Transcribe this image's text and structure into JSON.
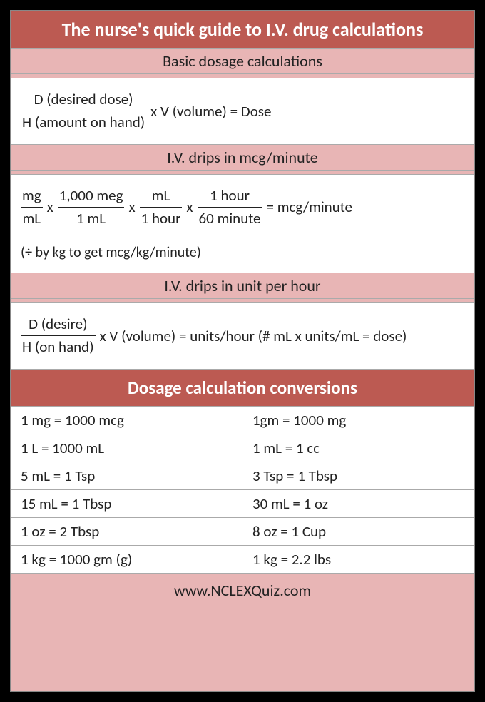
{
  "title": "The nurse's quick guide to I.V. drug calculations",
  "sections": {
    "basic": {
      "heading": "Basic dosage calculations",
      "frac": {
        "num": "D (desired dose)",
        "den": "H (amount on hand)"
      },
      "tail": "  x  V (volume) = Dose"
    },
    "mcgmin": {
      "heading": "I.V. drips in mcg/minute",
      "f1": {
        "num": "mg",
        "den": "mL"
      },
      "x1": " x ",
      "f2": {
        "num": "1,000 meg",
        "den": "1 mL"
      },
      "x2": " x ",
      "f3": {
        "num": "mL",
        "den": "1 hour"
      },
      "x3": " x ",
      "f4": {
        "num": "1 hour",
        "den": "60 minute"
      },
      "tail": " = mcg/minute",
      "note": "(÷  by kg to get mcg/kg/minute)"
    },
    "unithr": {
      "heading": "I.V. drips in unit per hour",
      "frac": {
        "num": "D (desire)",
        "den": "H (on hand)"
      },
      "tail": " x V (volume) = units/hour (# mL x units/mL = dose)"
    }
  },
  "conversions": {
    "heading": "Dosage calculation conversions",
    "rows": [
      {
        "l": "1 mg = 1000 mcg",
        "r": "1gm = 1000 mg"
      },
      {
        "l": "1 L = 1000 mL",
        "r": "1 mL = 1 cc"
      },
      {
        "l": "5 mL = 1 Tsp",
        "r": "3 Tsp = 1 Tbsp"
      },
      {
        "l": "15 mL = 1 Tbsp",
        "r": "30 mL = 1 oz"
      },
      {
        "l": "1 oz = 2 Tbsp",
        "r": "8 oz = 1 Cup"
      },
      {
        "l": "1 kg = 1000 gm (g)",
        "r": "1 kg = 2.2 lbs"
      }
    ]
  },
  "footer": "www.NCLEXQuiz.com",
  "colors": {
    "dark_header_bg": "#bc5a52",
    "light_bg": "#e8b5b5",
    "panel_bg": "#ffffff",
    "page_bg": "#000000",
    "text_dark": "#222222",
    "text_light": "#ffffff",
    "border": "#aaaaaa"
  },
  "fonts": {
    "title_size_pt": 20,
    "subheader_size_pt": 16,
    "body_size_pt": 15
  }
}
